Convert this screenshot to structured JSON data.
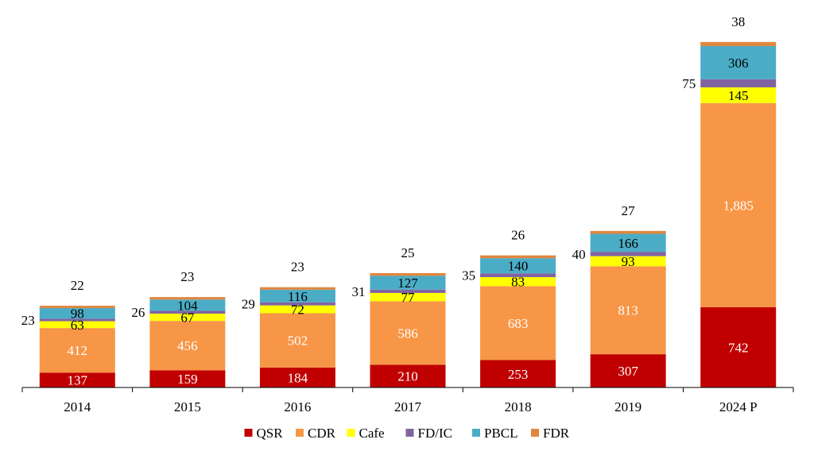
{
  "chart_data": {
    "type": "stacked-bar",
    "title": "",
    "xlabel": "",
    "ylabel": "",
    "categories": [
      "2014",
      "2015",
      "2016",
      "2017",
      "2018",
      "2019",
      "2024 P"
    ],
    "series": [
      {
        "name": "QSR",
        "color": "#C00000",
        "values": [
          137,
          159,
          184,
          210,
          253,
          307,
          742
        ],
        "labels": [
          "137",
          "159",
          "184",
          "210",
          "253",
          "307",
          "742"
        ],
        "label_color": "#ffffff"
      },
      {
        "name": "CDR",
        "color": "#F79646",
        "values": [
          412,
          456,
          502,
          586,
          683,
          813,
          1885
        ],
        "labels": [
          "412",
          "456",
          "502",
          "586",
          "683",
          "813",
          "1,885"
        ],
        "label_color": "#ffffff"
      },
      {
        "name": "Cafe",
        "color": "#FFFF00",
        "values": [
          63,
          67,
          72,
          77,
          83,
          93,
          145
        ],
        "labels": [
          "63",
          "67",
          "72",
          "77",
          "83",
          "93",
          "145"
        ],
        "label_color": "#000000"
      },
      {
        "name": "FD/IC",
        "color": "#8064A2",
        "values": [
          23,
          26,
          29,
          31,
          35,
          40,
          75
        ],
        "labels": [
          "23",
          "26",
          "29",
          "31",
          "35",
          "40",
          "75"
        ],
        "label_color": "#000000"
      },
      {
        "name": "PBCL",
        "color": "#4BACC6",
        "values": [
          98,
          104,
          116,
          127,
          140,
          166,
          306
        ],
        "labels": [
          "98",
          "104",
          "116",
          "127",
          "140",
          "166",
          "306"
        ],
        "label_color": "#000000"
      },
      {
        "name": "FDR",
        "color": "#E0873F",
        "values": [
          22,
          23,
          23,
          25,
          26,
          27,
          38
        ],
        "labels": [
          "22",
          "23",
          "23",
          "25",
          "26",
          "27",
          "38"
        ],
        "label_color": "#000000"
      }
    ],
    "ylim": [
      0,
      3300
    ],
    "grid": false,
    "legend_position": "bottom"
  }
}
